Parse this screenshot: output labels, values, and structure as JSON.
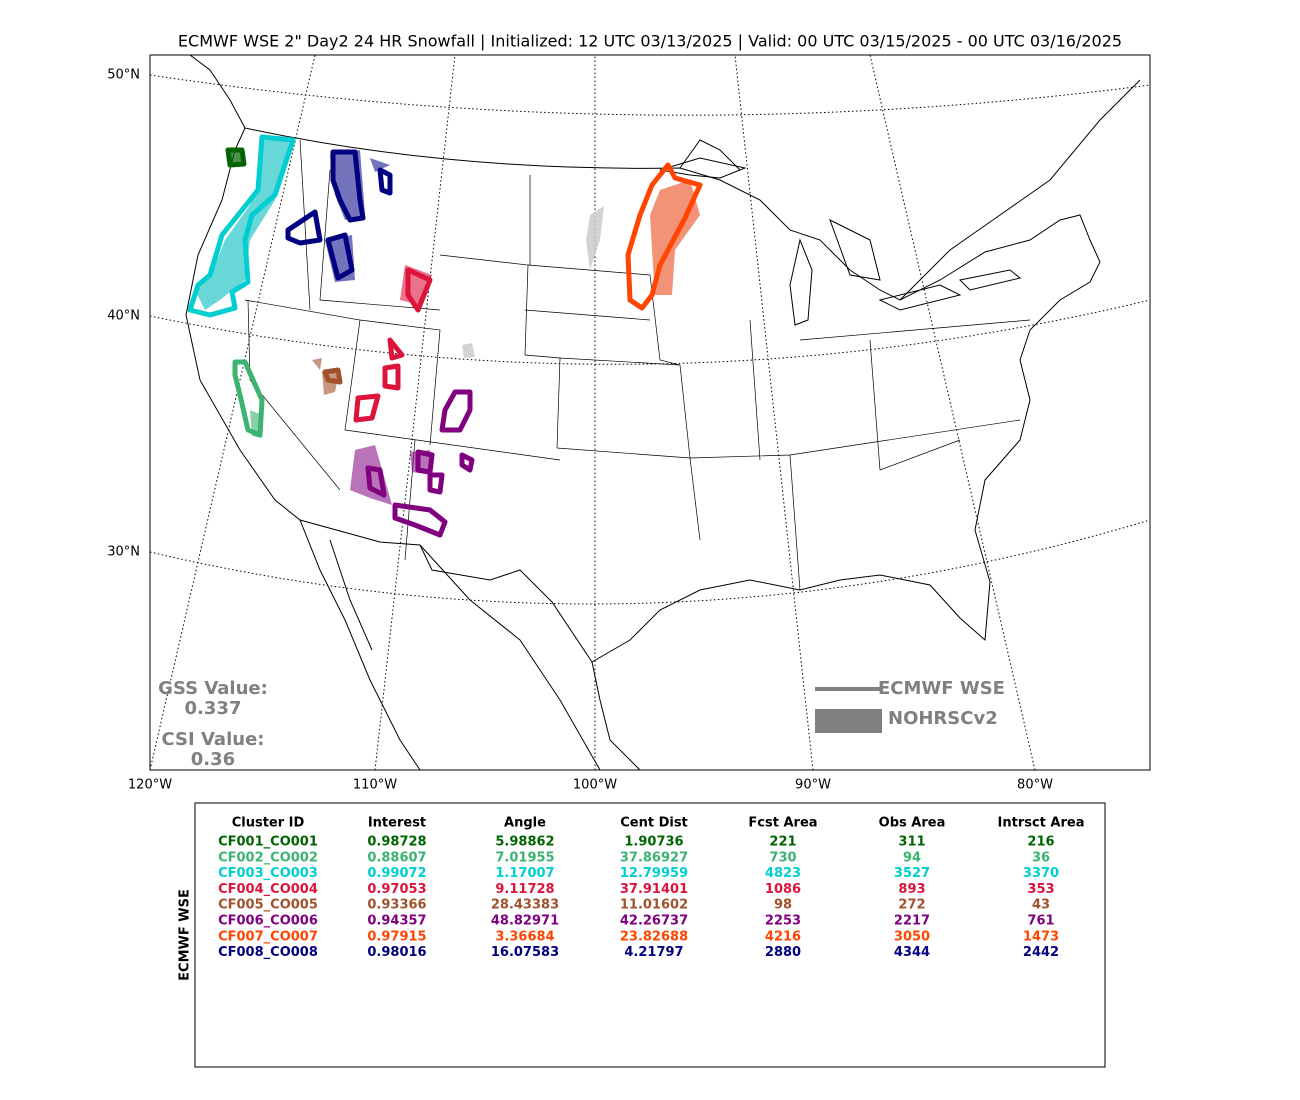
{
  "title": "ECMWF WSE 2\" Day2 24 HR Snowfall | Initialized: 12 UTC 03/13/2025 | Valid: 00 UTC 03/15/2025 - 00 UTC 03/16/2025",
  "map": {
    "lat_labels": [
      "50°N",
      "40°N",
      "30°N"
    ],
    "lon_labels": [
      "120°W",
      "110°W",
      "100°W",
      "90°W",
      "80°W"
    ],
    "gss_label": "GSS Value:",
    "gss_value": "0.337",
    "csi_label": "CSI Value:",
    "csi_value": "0.36",
    "legend": [
      {
        "label": "ECMWF WSE",
        "color": "#808080"
      },
      {
        "label": "NOHRSCv2",
        "color": "#808080"
      }
    ]
  },
  "table": {
    "side_label": "ECMWF WSE",
    "columns": [
      "Cluster ID",
      "Interest",
      "Angle",
      "Cent Dist",
      "Fcst Area",
      "Obs Area",
      "Intrsct Area"
    ],
    "rows": [
      {
        "color": "#006400",
        "cells": [
          "CF001_CO001",
          "0.98728",
          "5.98862",
          "1.90736",
          "221",
          "311",
          "216"
        ]
      },
      {
        "color": "#3cb371",
        "cells": [
          "CF002_CO002",
          "0.88607",
          "7.01955",
          "37.86927",
          "730",
          "94",
          "36"
        ]
      },
      {
        "color": "#00ced1",
        "cells": [
          "CF003_CO003",
          "0.99072",
          "1.17007",
          "12.79959",
          "4823",
          "3527",
          "3370"
        ]
      },
      {
        "color": "#dc143c",
        "cells": [
          "CF004_CO004",
          "0.97053",
          "9.11728",
          "37.91401",
          "1086",
          "893",
          "353"
        ]
      },
      {
        "color": "#a0522d",
        "cells": [
          "CF005_CO005",
          "0.93366",
          "28.43383",
          "11.01602",
          "98",
          "272",
          "43"
        ]
      },
      {
        "color": "#800080",
        "cells": [
          "CF006_CO006",
          "0.94357",
          "48.82971",
          "42.26737",
          "2253",
          "2217",
          "761"
        ]
      },
      {
        "color": "#ff4500",
        "cells": [
          "CF007_CO007",
          "0.97915",
          "3.36684",
          "23.82688",
          "4216",
          "3050",
          "1473"
        ]
      },
      {
        "color": "#000080",
        "cells": [
          "CF008_CO008",
          "0.98016",
          "16.07583",
          "4.21797",
          "2880",
          "4344",
          "2442"
        ]
      }
    ]
  }
}
